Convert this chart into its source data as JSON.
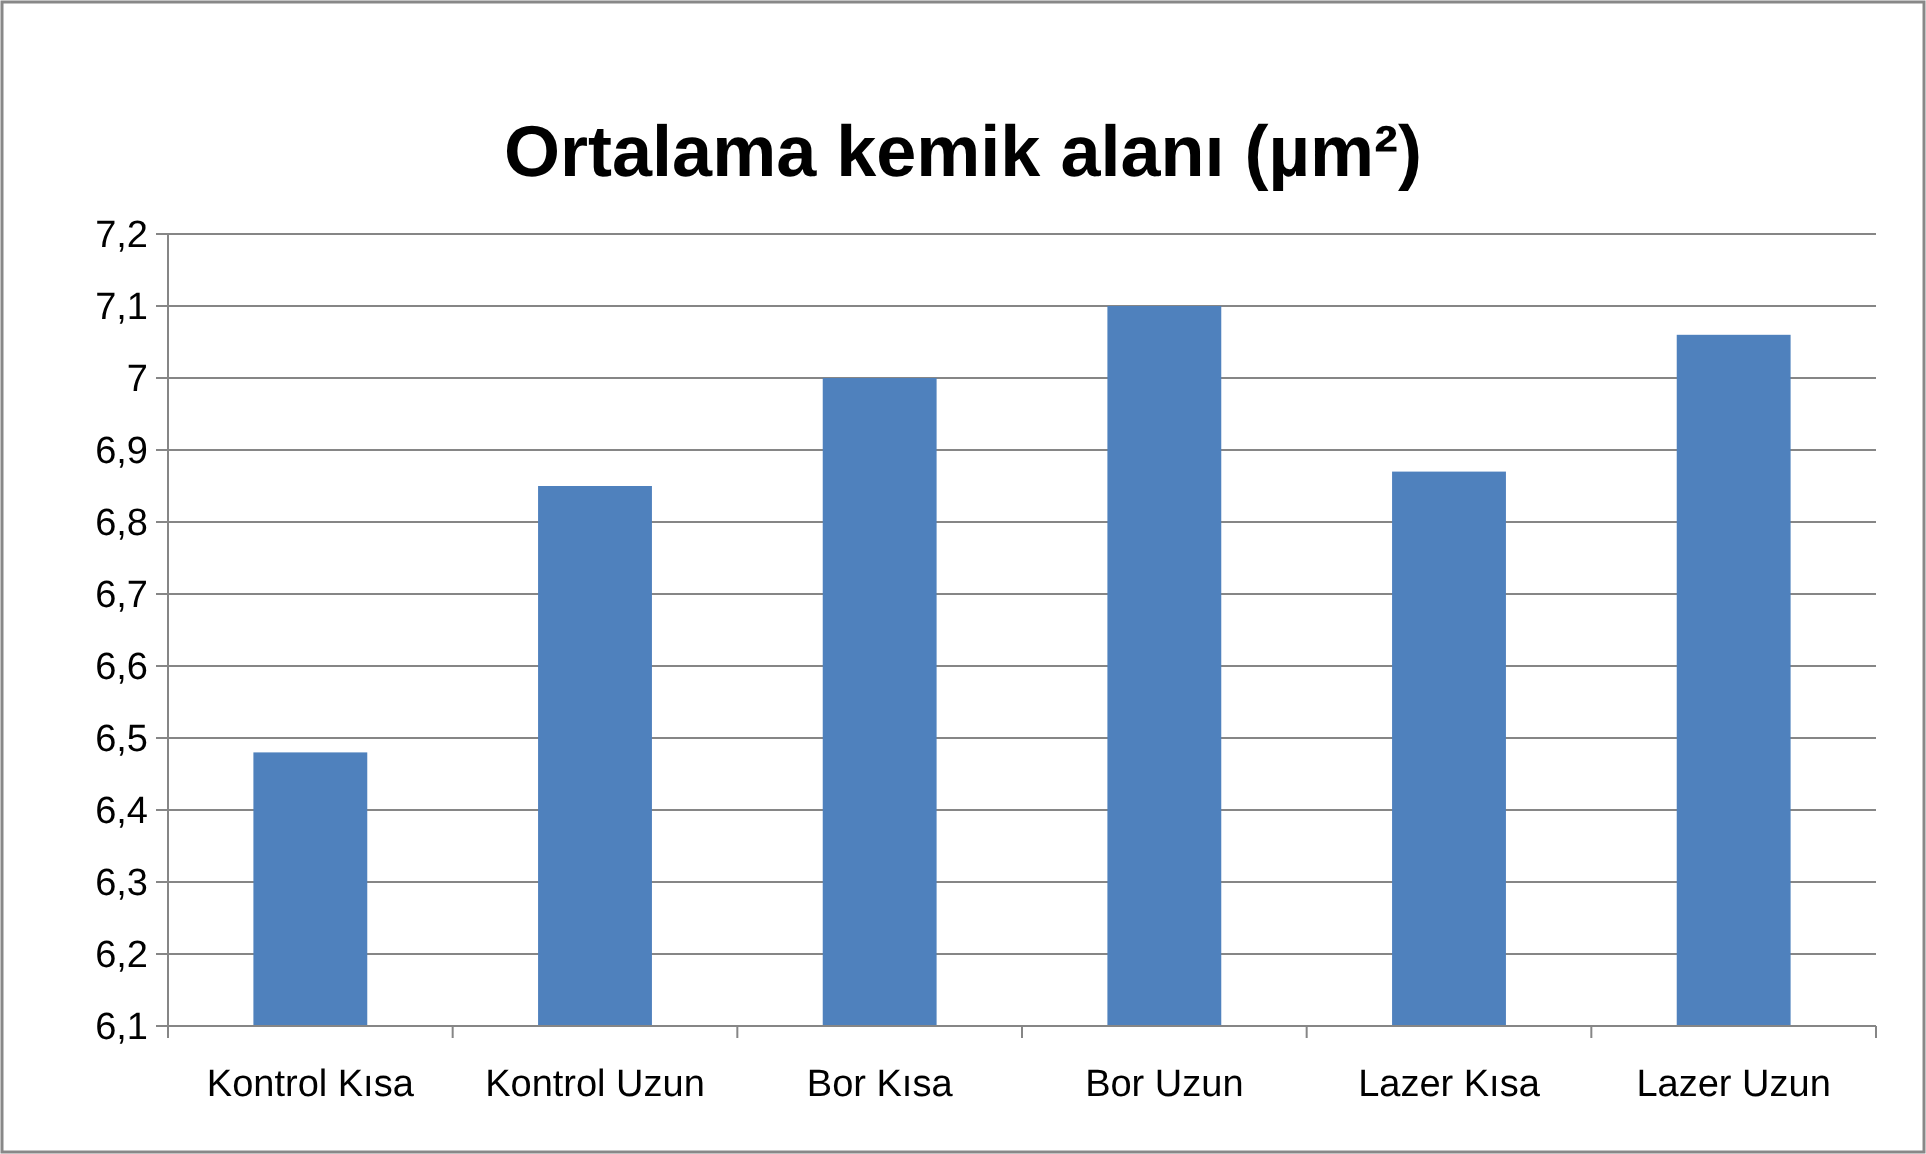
{
  "chart_data": {
    "type": "bar",
    "title": "Ortalama kemik alanı (µm²)",
    "categories": [
      "Kontrol Kısa",
      "Kontrol Uzun",
      "Bor Kısa",
      "Bor Uzun",
      "Lazer Kısa",
      "Lazer Uzun"
    ],
    "values": [
      6.48,
      6.85,
      7.0,
      7.1,
      6.87,
      7.06
    ],
    "color": "#4f81bd",
    "ylim": [
      6.1,
      7.2
    ],
    "yticks": [
      {
        "value": 6.1,
        "label": "6,1"
      },
      {
        "value": 6.2,
        "label": "6,2"
      },
      {
        "value": 6.3,
        "label": "6,3"
      },
      {
        "value": 6.4,
        "label": "6,4"
      },
      {
        "value": 6.5,
        "label": "6,5"
      },
      {
        "value": 6.6,
        "label": "6,6"
      },
      {
        "value": 6.7,
        "label": "6,7"
      },
      {
        "value": 6.8,
        "label": "6,8"
      },
      {
        "value": 6.9,
        "label": "6,9"
      },
      {
        "value": 7,
        "label": "7"
      },
      {
        "value": 7.1,
        "label": "7,1"
      },
      {
        "value": 7.2,
        "label": "7,2"
      }
    ],
    "grid": true
  }
}
